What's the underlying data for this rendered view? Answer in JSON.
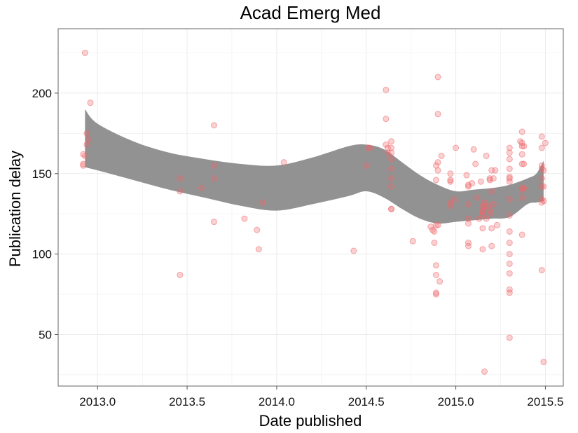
{
  "chart_data": {
    "type": "scatter",
    "title": "Acad Emerg Med",
    "xlabel": "Date published",
    "ylabel": "Publication delay",
    "xlim": [
      2012.78,
      2015.6
    ],
    "ylim": [
      18,
      240
    ],
    "x_ticks": [
      2013.0,
      2013.5,
      2014.0,
      2014.5,
      2015.0,
      2015.5
    ],
    "x_tick_labels": [
      "2013.0",
      "2013.5",
      "2014.0",
      "2014.5",
      "2015.0",
      "2015.5"
    ],
    "y_ticks": [
      50,
      100,
      150,
      200
    ],
    "y_tick_labels": [
      "50",
      "100",
      "150",
      "200"
    ],
    "grid": true,
    "colors": {
      "points": "#f0676b",
      "band": "#8c8c8c",
      "grid": "#ebebeb",
      "panel_border": "#7f7f7f"
    },
    "series": [
      {
        "values": [
          [
            2012.93,
            225
          ],
          [
            2012.92,
            162
          ],
          [
            2012.93,
            161
          ],
          [
            2012.92,
            156
          ],
          [
            2012.92,
            155
          ],
          [
            2012.94,
            175
          ],
          [
            2012.95,
            171
          ],
          [
            2012.94,
            168
          ],
          [
            2012.96,
            194
          ],
          [
            2013.46,
            147
          ],
          [
            2013.46,
            139
          ],
          [
            2013.46,
            87
          ],
          [
            2013.58,
            141
          ],
          [
            2013.65,
            180
          ],
          [
            2013.65,
            155
          ],
          [
            2013.65,
            147
          ],
          [
            2013.65,
            120
          ],
          [
            2013.82,
            122
          ],
          [
            2013.89,
            115
          ],
          [
            2013.9,
            103
          ],
          [
            2013.92,
            132
          ],
          [
            2014.04,
            157
          ],
          [
            2014.43,
            102
          ],
          [
            2014.51,
            166
          ],
          [
            2014.52,
            166
          ],
          [
            2014.5,
            155
          ],
          [
            2014.61,
            202
          ],
          [
            2014.61,
            184
          ],
          [
            2014.61,
            168
          ],
          [
            2014.62,
            166
          ],
          [
            2014.62,
            163
          ],
          [
            2014.64,
            170
          ],
          [
            2014.64,
            166
          ],
          [
            2014.64,
            163
          ],
          [
            2014.64,
            159
          ],
          [
            2014.64,
            153
          ],
          [
            2014.64,
            147
          ],
          [
            2014.64,
            142
          ],
          [
            2014.64,
            128
          ],
          [
            2014.64,
            128
          ],
          [
            2014.76,
            108
          ],
          [
            2014.86,
            117
          ],
          [
            2014.87,
            115
          ],
          [
            2014.88,
            114
          ],
          [
            2014.88,
            107
          ],
          [
            2014.89,
            118
          ],
          [
            2014.89,
            155
          ],
          [
            2014.89,
            146
          ],
          [
            2014.9,
            210
          ],
          [
            2014.9,
            187
          ],
          [
            2014.9,
            157
          ],
          [
            2014.9,
            152
          ],
          [
            2014.89,
            93
          ],
          [
            2014.89,
            87
          ],
          [
            2014.89,
            76
          ],
          [
            2014.89,
            75
          ],
          [
            2014.9,
            118
          ],
          [
            2014.91,
            83
          ],
          [
            2014.92,
            161
          ],
          [
            2014.97,
            150
          ],
          [
            2014.97,
            146
          ],
          [
            2014.97,
            145
          ],
          [
            2014.97,
            132
          ],
          [
            2014.97,
            130
          ],
          [
            2014.99,
            134
          ],
          [
            2015.0,
            166
          ],
          [
            2015.06,
            149
          ],
          [
            2015.07,
            143
          ],
          [
            2015.07,
            142
          ],
          [
            2015.07,
            131
          ],
          [
            2015.07,
            122
          ],
          [
            2015.07,
            119
          ],
          [
            2015.07,
            107
          ],
          [
            2015.07,
            105
          ],
          [
            2015.09,
            144
          ],
          [
            2015.1,
            165
          ],
          [
            2015.11,
            156
          ],
          [
            2015.12,
            135
          ],
          [
            2015.13,
            122
          ],
          [
            2015.14,
            145
          ],
          [
            2015.15,
            130
          ],
          [
            2015.15,
            127
          ],
          [
            2015.15,
            126
          ],
          [
            2015.15,
            124
          ],
          [
            2015.15,
            116
          ],
          [
            2015.15,
            103
          ],
          [
            2015.16,
            27
          ],
          [
            2015.17,
            161
          ],
          [
            2015.16,
            132
          ],
          [
            2015.16,
            129
          ],
          [
            2015.17,
            122
          ],
          [
            2015.18,
            130
          ],
          [
            2015.19,
            147
          ],
          [
            2015.19,
            146
          ],
          [
            2015.19,
            127
          ],
          [
            2015.19,
            125
          ],
          [
            2015.2,
            152
          ],
          [
            2015.2,
            139
          ],
          [
            2015.2,
            116
          ],
          [
            2015.2,
            105
          ],
          [
            2015.21,
            147
          ],
          [
            2015.21,
            131
          ],
          [
            2015.22,
            152
          ],
          [
            2015.23,
            118
          ],
          [
            2015.3,
            166
          ],
          [
            2015.3,
            163
          ],
          [
            2015.3,
            159
          ],
          [
            2015.3,
            153
          ],
          [
            2015.3,
            148
          ],
          [
            2015.3,
            147
          ],
          [
            2015.3,
            145
          ],
          [
            2015.3,
            134
          ],
          [
            2015.3,
            124
          ],
          [
            2015.3,
            114
          ],
          [
            2015.3,
            107
          ],
          [
            2015.3,
            100
          ],
          [
            2015.3,
            94
          ],
          [
            2015.3,
            88
          ],
          [
            2015.3,
            78
          ],
          [
            2015.3,
            76
          ],
          [
            2015.3,
            48
          ],
          [
            2015.36,
            170
          ],
          [
            2015.37,
            176
          ],
          [
            2015.37,
            169
          ],
          [
            2015.37,
            167
          ],
          [
            2015.37,
            162
          ],
          [
            2015.37,
            156
          ],
          [
            2015.37,
            141
          ],
          [
            2015.37,
            140
          ],
          [
            2015.37,
            135
          ],
          [
            2015.37,
            112
          ],
          [
            2015.38,
            167
          ],
          [
            2015.38,
            156
          ],
          [
            2015.38,
            141
          ],
          [
            2015.48,
            173
          ],
          [
            2015.48,
            166
          ],
          [
            2015.48,
            155
          ],
          [
            2015.48,
            153
          ],
          [
            2015.48,
            147
          ],
          [
            2015.48,
            142
          ],
          [
            2015.48,
            134
          ],
          [
            2015.48,
            132
          ],
          [
            2015.48,
            90
          ],
          [
            2015.49,
            152
          ],
          [
            2015.49,
            142
          ],
          [
            2015.49,
            133
          ],
          [
            2015.49,
            33
          ],
          [
            2015.5,
            169
          ]
        ]
      }
    ],
    "smooth_band": {
      "x": [
        2012.93,
        2013.0,
        2013.2,
        2013.4,
        2013.6,
        2013.8,
        2014.0,
        2014.2,
        2014.4,
        2014.5,
        2014.6,
        2014.7,
        2014.8,
        2014.9,
        2015.0,
        2015.1,
        2015.2,
        2015.3,
        2015.4,
        2015.45,
        2015.49
      ],
      "upper": [
        190,
        181,
        170,
        163,
        159,
        156,
        155,
        160,
        167,
        168,
        165,
        157,
        149,
        143,
        139,
        140,
        141,
        143,
        147,
        150,
        158
      ],
      "lower": [
        154,
        152,
        146,
        140,
        135,
        130,
        127,
        131,
        136,
        139,
        135,
        128,
        122,
        119,
        120,
        121,
        122,
        123,
        131,
        132,
        133
      ]
    }
  }
}
